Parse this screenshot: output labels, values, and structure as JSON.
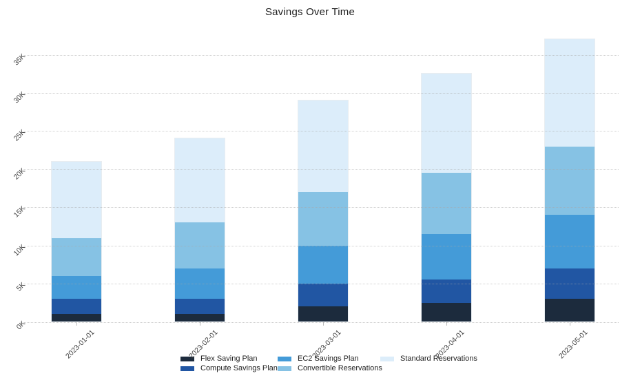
{
  "chart_data": {
    "type": "bar",
    "stacked": true,
    "title": "Savings Over Time",
    "categories": [
      "2023-01-01",
      "2023-02-01",
      "2023-03-01",
      "2023-04-01",
      "2023-05-01"
    ],
    "series": [
      {
        "name": "Flex Saving Plan",
        "color": "#1c2b3d",
        "values": [
          1000,
          1000,
          2000,
          2500,
          3000
        ]
      },
      {
        "name": "Compute Savings Plan",
        "color": "#2156a3",
        "values": [
          2000,
          2000,
          3000,
          3000,
          4000
        ]
      },
      {
        "name": "EC2 Savings Plan",
        "color": "#449bd8",
        "values": [
          3000,
          4000,
          5000,
          6000,
          7000
        ]
      },
      {
        "name": "Convertible Reservations",
        "color": "#86c2e4",
        "values": [
          5000,
          6000,
          7000,
          8000,
          9000
        ]
      },
      {
        "name": "Standard Reservations",
        "color": "#dcedfa",
        "values": [
          10000,
          11000,
          12000,
          13000,
          14000
        ]
      }
    ],
    "stack_totals": [
      21000,
      24000,
      29000,
      32500,
      37000
    ],
    "y_ticks": [
      "0K",
      "5K",
      "10K",
      "15K",
      "20K",
      "25K",
      "30K",
      "35K"
    ],
    "y_tick_values": [
      0,
      5000,
      10000,
      15000,
      20000,
      25000,
      30000,
      35000
    ],
    "ylim": [
      0,
      35000
    ],
    "xlabel": "",
    "ylabel": "",
    "grid": "horizontal-dotted",
    "legend_position": "bottom",
    "tick_angle": -45,
    "background_color": "#ffffff"
  }
}
